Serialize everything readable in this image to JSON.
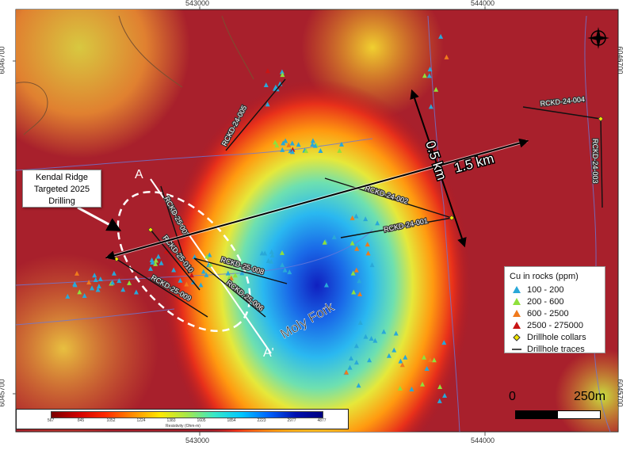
{
  "coordinates": {
    "top": [
      "543000",
      "544000"
    ],
    "bottom": [
      "543000",
      "544000"
    ],
    "left": [
      "6046700",
      "6045700"
    ],
    "right": [
      "6046700",
      "6045700"
    ]
  },
  "callout": {
    "line1": "Kendal Ridge",
    "line2": "Targeted 2025",
    "line3": "Drilling"
  },
  "distances": {
    "short": "0.5 km",
    "long": "1.5 km"
  },
  "section": {
    "start": "A",
    "end": "A'"
  },
  "place_label": "Moly Fork",
  "drillholes": [
    "RCKD-25-007",
    "RCKD-25-010",
    "RCKD-25-008",
    "RCKD-25-009",
    "RCKD-25-006",
    "RCKD-24-002",
    "RCKD-24-001",
    "RCKD-24-004",
    "RCKD-24-003",
    "RCKD-24-005"
  ],
  "legend": {
    "title": "Cu in rocks (ppm)",
    "items": [
      {
        "label": "100 - 200",
        "color": "#29a8d8",
        "symbol": "triangle"
      },
      {
        "label": "200 - 600",
        "color": "#8fe03c",
        "symbol": "triangle"
      },
      {
        "label": "600 - 2500",
        "color": "#f07a1c",
        "symbol": "triangle"
      },
      {
        "label": "2500 - 275000",
        "color": "#c81414",
        "symbol": "triangle"
      },
      {
        "label": "Drillhole collars",
        "color": "#f2e600",
        "symbol": "diamond"
      },
      {
        "label": "Drillhole traces",
        "color": "#111111",
        "symbol": "line"
      }
    ]
  },
  "colorbar": {
    "ticks": [
      "567",
      "845",
      "1052",
      "1224",
      "1383",
      "1605",
      "1854",
      "2223",
      "2977",
      "4877"
    ],
    "label": "Resistivity (Ohm-m)"
  },
  "scale_bar": {
    "start": "0",
    "end": "250m"
  },
  "north_arrow": "compass-rose-icon"
}
